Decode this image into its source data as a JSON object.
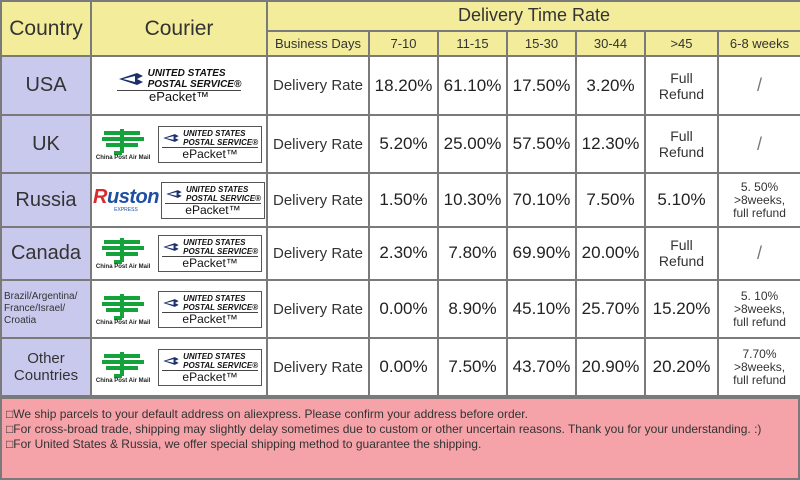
{
  "header": {
    "country_label": "Country",
    "courier_label": "Courier",
    "title": "Delivery Time Rate",
    "columns": [
      "Business Days",
      "7-10",
      "11-15",
      "15-30",
      "30-44",
      ">45",
      "6-8 weeks"
    ]
  },
  "logos": {
    "usps_line1": "UNITED STATES",
    "usps_line2": "POSTAL SERVICE",
    "usps_reg": "®",
    "epacket": "ePacket™",
    "china_post": "China Post Air Mail",
    "ruston": "Ruston",
    "ruston_sub": "EXPRESS"
  },
  "rows": [
    {
      "country": "USA",
      "business": "Delivery Rate",
      "values": [
        "18.20%",
        "61.10%",
        "17.50%",
        "3.20%"
      ],
      "over45": "Full Refund",
      "weeks": "/"
    },
    {
      "country": "UK",
      "business": "Delivery Rate",
      "values": [
        "5.20%",
        "25.00%",
        "57.50%",
        "12.30%"
      ],
      "over45": "Full Refund",
      "weeks": "/"
    },
    {
      "country": "Russia",
      "business": "Delivery Rate",
      "values": [
        "1.50%",
        "10.30%",
        "70.10%",
        "7.50%"
      ],
      "over45": "5.10%",
      "weeks": "5. 50%\n>8weeks,\nfull refund"
    },
    {
      "country": "Canada",
      "business": "Delivery Rate",
      "values": [
        "2.30%",
        "7.80%",
        "69.90%",
        "20.00%"
      ],
      "over45": "Full Refund",
      "weeks": "/"
    },
    {
      "country": "Brazil/Argentina/\nFrance/Israel/\nCroatia",
      "business": "Delivery Rate",
      "values": [
        "0.00%",
        "8.90%",
        "45.10%",
        "25.70%"
      ],
      "over45": "15.20%",
      "weeks": "5. 10%\n>8weeks,\nfull refund"
    },
    {
      "country": "Other Countries",
      "business": "Delivery Rate",
      "values": [
        "0.00%",
        "7.50%",
        "43.70%",
        "20.90%"
      ],
      "over45": "20.20%",
      "weeks": "7.70%\n>8weeks,\nfull refund"
    }
  ],
  "notes": [
    "We ship parcels to your default address on aliexpress. Please confirm your address before order.",
    "For cross-broad trade, shipping may slightly delay sometimes due to custom or other uncertain reasons. Thank you for your understanding. :)",
    "For United States & Russia, we offer special shipping method to guarantee the shipping."
  ],
  "colors": {
    "header_yellow": "#f3ec9a",
    "country_lavender": "#c9c9ee",
    "notes_pink": "#f5a3a9",
    "border_gray": "#7a7a7a"
  }
}
